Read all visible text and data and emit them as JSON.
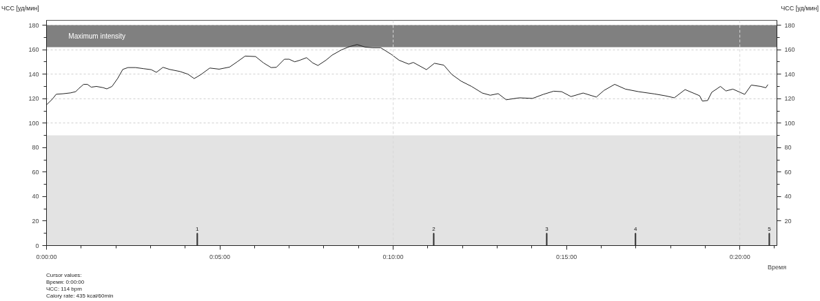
{
  "chart_data": {
    "type": "line",
    "xlabel": "Время",
    "ylabel": "ЧСС [уд/мин]",
    "y2label": "ЧСС [уд/мин]",
    "x": [
      0,
      0.17,
      0.28,
      0.47,
      0.69,
      0.84,
      0.92,
      1.07,
      1.18,
      1.29,
      1.44,
      1.63,
      1.74,
      1.89,
      2.05,
      2.2,
      2.35,
      2.57,
      2.8,
      3.02,
      3.17,
      3.36,
      3.55,
      3.85,
      4.08,
      4.26,
      4.45,
      4.71,
      4.98,
      5.28,
      5.5,
      5.73,
      6.03,
      6.26,
      6.48,
      6.63,
      6.86,
      7.0,
      7.16,
      7.31,
      7.5,
      7.68,
      7.83,
      8.06,
      8.24,
      8.51,
      8.74,
      8.96,
      9.19,
      9.41,
      9.64,
      9.94,
      10.17,
      10.45,
      10.58,
      10.96,
      11.19,
      11.46,
      11.69,
      11.96,
      12.26,
      12.57,
      12.8,
      13.03,
      13.26,
      13.64,
      14.02,
      14.33,
      14.63,
      14.86,
      15.13,
      15.48,
      15.86,
      16.08,
      16.39,
      16.7,
      17.08,
      17.53,
      17.84,
      18.11,
      18.42,
      18.84,
      18.92,
      19.07,
      19.19,
      19.44,
      19.6,
      19.8,
      20.14,
      20.33,
      20.6,
      20.75,
      20.81
    ],
    "series": [
      {
        "color": "#202020",
        "values": [
          115,
          119.7,
          123.6,
          124,
          124.7,
          125.7,
          128,
          131.7,
          131.7,
          129.4,
          130,
          129,
          128,
          130,
          136.4,
          143.9,
          145.4,
          145.4,
          144.5,
          143.7,
          141.5,
          145.6,
          143.9,
          142.2,
          140,
          136.4,
          139.6,
          145,
          144.1,
          145.8,
          150.1,
          154.8,
          154.4,
          149.2,
          145.4,
          145.6,
          152.2,
          152.2,
          150.1,
          151.4,
          153.5,
          149.2,
          147.1,
          151.4,
          155.6,
          159.9,
          162.5,
          164.2,
          162.1,
          161.6,
          161.6,
          156.3,
          151.4,
          148.2,
          149.6,
          143.7,
          148.9,
          147.4,
          139.8,
          134.3,
          130,
          124.6,
          122.8,
          124.1,
          119.1,
          120.7,
          120.2,
          123.5,
          126.1,
          125.7,
          121.7,
          124.6,
          121.3,
          126.7,
          131.7,
          127.8,
          125.7,
          123.9,
          122.4,
          120.7,
          127.4,
          122.4,
          118,
          118.5,
          125.2,
          130,
          126.3,
          127.8,
          123.5,
          131.1,
          130,
          128.9,
          131.5
        ]
      },
      {
        "type": "bar",
        "name": "1",
        "color": "#333333",
        "x": [
          4.35
        ],
        "values": [
          10
        ]
      },
      {
        "type": "bar",
        "name": "2",
        "color": "#333333",
        "x": [
          11.17
        ],
        "values": [
          10
        ]
      },
      {
        "type": "bar",
        "name": "3",
        "color": "#333333",
        "x": [
          14.43
        ],
        "values": [
          10
        ]
      },
      {
        "type": "bar",
        "name": "4",
        "color": "#333333",
        "x": [
          16.99
        ],
        "values": [
          10
        ]
      },
      {
        "type": "bar",
        "name": "5",
        "color": "#333333",
        "x": [
          20.85
        ],
        "values": [
          10
        ]
      }
    ],
    "xlim": [
      0,
      21.07
    ],
    "xticks": [
      {
        "value": 0,
        "label": "0:00:00"
      },
      {
        "value": 5,
        "label": "0:05:00"
      },
      {
        "value": 10,
        "label": "0:10:00"
      },
      {
        "value": 15,
        "label": "0:15:00"
      },
      {
        "value": 20,
        "label": "0:20:00"
      }
    ],
    "ylim": [
      0,
      184
    ],
    "yticks": [
      0,
      20,
      40,
      60,
      80,
      100,
      120,
      140,
      160,
      180
    ],
    "y2lim": [
      0,
      184
    ],
    "y2ticks": [
      20,
      40,
      60,
      80,
      100,
      120,
      140,
      160,
      180
    ],
    "grid": "y",
    "bands": [
      {
        "axis": "y",
        "from": 162,
        "to": 180,
        "label": "Maximum intensity",
        "color": "#808080"
      },
      {
        "axis": "y",
        "from": 0,
        "to": 90,
        "label": null,
        "color": "#e3e3e3"
      }
    ],
    "ref_lines": [
      {
        "axis": "x",
        "value": 10,
        "label": null,
        "color": "#d8d8d8",
        "line_style": "dashed"
      },
      {
        "axis": "x",
        "value": 20,
        "label": null,
        "color": "#d8d8d8",
        "line_style": "dashed"
      }
    ],
    "annotations": [
      "Cursor values:",
      "Время: 0:00:00",
      "ЧСС: 114 bpm",
      "Calory rate: 435 kcal/60min"
    ]
  }
}
